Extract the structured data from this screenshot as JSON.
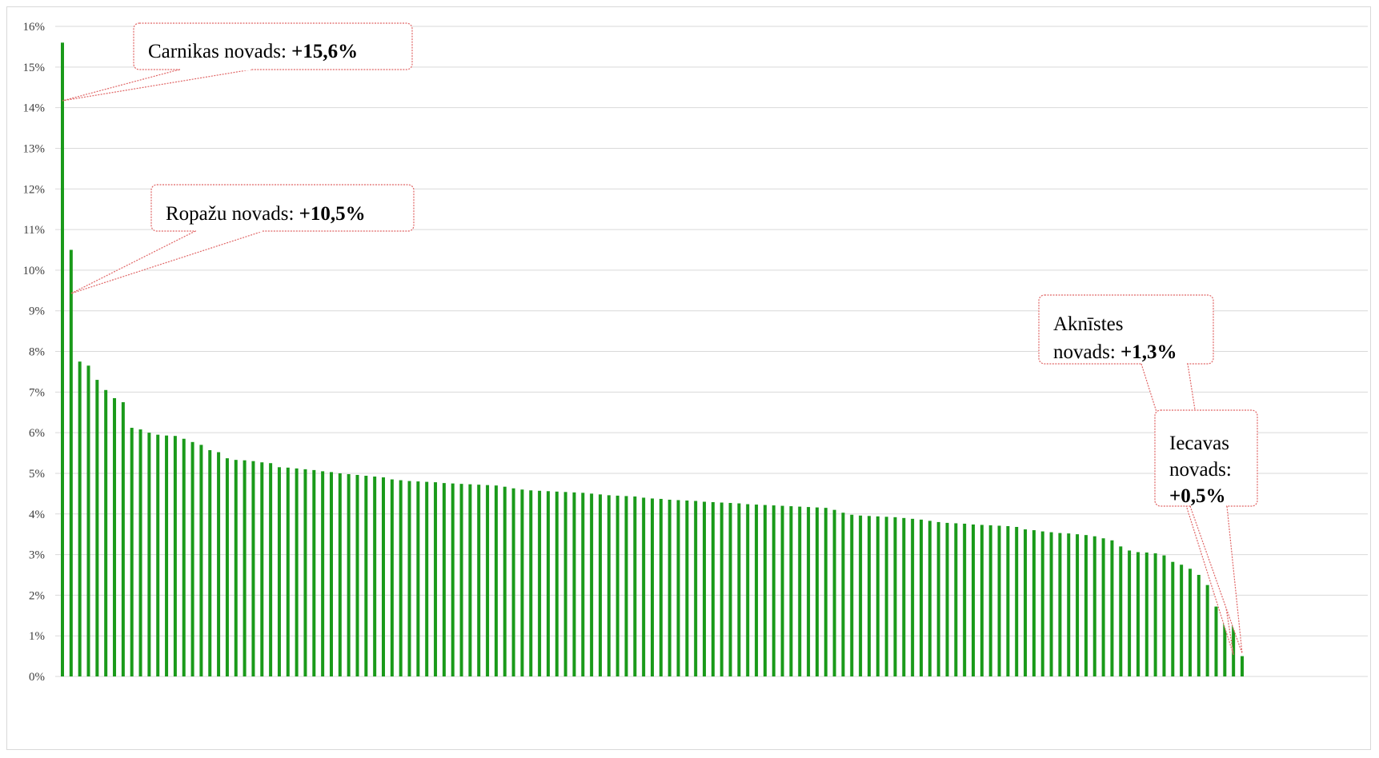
{
  "chart_data": {
    "type": "bar",
    "title": "",
    "xlabel": "",
    "ylabel": "",
    "ylim": [
      0,
      16
    ],
    "y_tick_format": "percent",
    "y_ticks": [
      "0%",
      "1%",
      "2%",
      "3%",
      "4%",
      "5%",
      "6%",
      "7%",
      "8%",
      "9%",
      "10%",
      "11%",
      "12%",
      "13%",
      "14%",
      "15%",
      "16%"
    ],
    "grid": true,
    "bar_color": "#1a9a1a",
    "annotation_border_color": "#e06666",
    "values": [
      15.6,
      10.5,
      7.75,
      7.65,
      7.3,
      7.05,
      6.85,
      6.75,
      6.12,
      6.08,
      6.0,
      5.95,
      5.93,
      5.92,
      5.85,
      5.77,
      5.7,
      5.57,
      5.52,
      5.37,
      5.33,
      5.32,
      5.3,
      5.27,
      5.25,
      5.15,
      5.14,
      5.12,
      5.1,
      5.08,
      5.05,
      5.03,
      5.0,
      4.98,
      4.96,
      4.94,
      4.92,
      4.9,
      4.85,
      4.83,
      4.81,
      4.8,
      4.79,
      4.78,
      4.76,
      4.75,
      4.74,
      4.73,
      4.72,
      4.71,
      4.7,
      4.67,
      4.63,
      4.6,
      4.58,
      4.57,
      4.56,
      4.55,
      4.54,
      4.53,
      4.52,
      4.5,
      4.48,
      4.46,
      4.45,
      4.44,
      4.43,
      4.4,
      4.38,
      4.37,
      4.35,
      4.34,
      4.33,
      4.32,
      4.3,
      4.29,
      4.28,
      4.27,
      4.26,
      4.24,
      4.23,
      4.22,
      4.21,
      4.2,
      4.19,
      4.18,
      4.17,
      4.16,
      4.15,
      4.1,
      4.03,
      3.98,
      3.96,
      3.95,
      3.94,
      3.93,
      3.92,
      3.9,
      3.88,
      3.86,
      3.83,
      3.8,
      3.78,
      3.77,
      3.76,
      3.74,
      3.73,
      3.72,
      3.71,
      3.7,
      3.68,
      3.62,
      3.6,
      3.57,
      3.55,
      3.53,
      3.52,
      3.5,
      3.48,
      3.45,
      3.4,
      3.35,
      3.2,
      3.1,
      3.06,
      3.05,
      3.03,
      2.98,
      2.82,
      2.75,
      2.65,
      2.5,
      2.25,
      1.72,
      1.58,
      1.3,
      0.5
    ],
    "annotations": [
      {
        "name": "carnikas",
        "lines": [
          [
            "Carnikas  novads:  ",
            "+15,6%"
          ]
        ],
        "bar_index": 0
      },
      {
        "name": "ropazu",
        "lines": [
          [
            "Ropažu  novads:  ",
            "+10,5%"
          ]
        ],
        "bar_index": 1
      },
      {
        "name": "aknistes",
        "lines": [
          [
            "Aknīstes",
            ""
          ],
          [
            "novads:  ",
            "+1,3%"
          ]
        ],
        "bar_index": 135
      },
      {
        "name": "iecavas",
        "lines": [
          [
            "Iecavas",
            ""
          ],
          [
            "novads:",
            ""
          ],
          [
            "",
            "+0,5%"
          ]
        ],
        "bar_index": 136
      }
    ]
  }
}
